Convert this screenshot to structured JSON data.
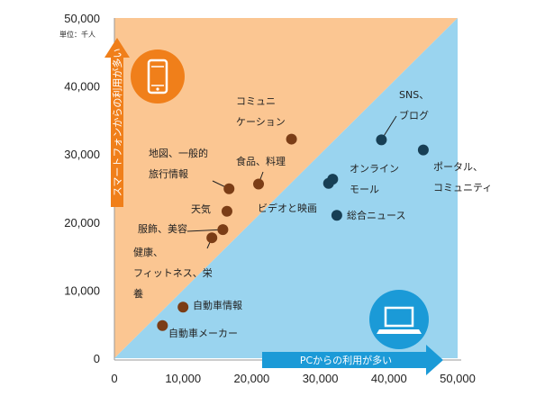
{
  "chart_data": {
    "type": "scatter",
    "xlim": [
      0,
      50000
    ],
    "ylim": [
      0,
      50000
    ],
    "x_ticks": [
      "0",
      "10,000",
      "20,000",
      "30,000",
      "40,000",
      "50,000"
    ],
    "y_ticks": [
      "0",
      "10,000",
      "20,000",
      "30,000",
      "40,000",
      "50,000"
    ],
    "unit_label": "単位：千人",
    "region_labels": {
      "smartphone": "スマートフォンからの利用が多い",
      "pc": "PCからの利用が多い"
    },
    "icons": {
      "smartphone": "smartphone-icon",
      "pc": "laptop-icon"
    },
    "grid": false,
    "colors": {
      "smartphone_region": "#fbc692",
      "pc_region": "#9ad4ef",
      "smartphone_point": "#7b3d16",
      "pc_point": "#173f55",
      "smartphone_arrow": "#f07f1a",
      "pc_arrow": "#1b9ad7",
      "icon_circle_phone": "#f07f1a",
      "icon_circle_pc": "#1b9ad7"
    },
    "series": [
      {
        "group": "smartphone",
        "points": [
          {
            "label": [
              "コミュニ",
              "ケーション"
            ],
            "x": 25800,
            "y": 32200
          },
          {
            "label": [
              "地図、一般的",
              "旅行情報"
            ],
            "x": 16700,
            "y": 24900
          },
          {
            "label": [
              "食品、料理"
            ],
            "x": 21000,
            "y": 25600
          },
          {
            "label": [
              "天気"
            ],
            "x": 16400,
            "y": 21600
          },
          {
            "label": [
              "服飾、美容"
            ],
            "x": 15800,
            "y": 18900
          },
          {
            "label": [
              "健康、",
              "フィットネス、栄",
              "養"
            ],
            "x": 14200,
            "y": 17700
          },
          {
            "label": [
              "自動車情報"
            ],
            "x": 10000,
            "y": 7500
          },
          {
            "label": [
              "自動車メーカー"
            ],
            "x": 7000,
            "y": 4800
          }
        ]
      },
      {
        "group": "pc",
        "points": [
          {
            "label": [
              "SNS、",
              "ブログ"
            ],
            "x": 38900,
            "y": 32100
          },
          {
            "label": [
              "ポータル、",
              "コミュニティ"
            ],
            "x": 45000,
            "y": 30600
          },
          {
            "label": [
              "オンライン",
              "モール"
            ],
            "x": 31800,
            "y": 26300
          },
          {
            "label": [
              "ビデオと映画"
            ],
            "x": 31200,
            "y": 25700
          },
          {
            "label": [
              "総合ニュース"
            ],
            "x": 32400,
            "y": 21000
          }
        ]
      }
    ]
  }
}
